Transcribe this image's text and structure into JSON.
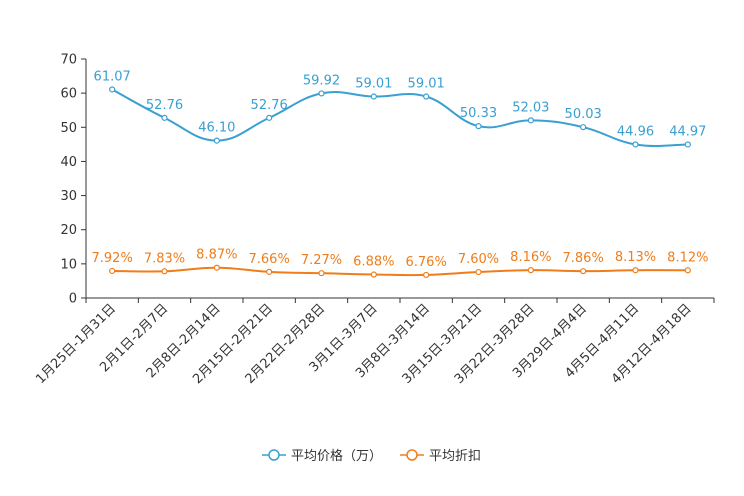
{
  "chart_data": {
    "type": "line",
    "categories": [
      "1月25日-1月31日",
      "2月1日-2月7日",
      "2月8日-2月14日",
      "2月15日-2月21日",
      "2月22日-2月28日",
      "3月1日-3月7日",
      "3月8日-3月14日",
      "3月15日-3月21日",
      "3月22日-3月28日",
      "3月29日-4月4日",
      "4月5日-4月11日",
      "4月12日-4月18日"
    ],
    "ylim": [
      0,
      70
    ],
    "yticks": [
      0,
      10,
      20,
      30,
      40,
      50,
      60,
      70
    ],
    "series": [
      {
        "name": "平均价格（万）",
        "color": "#3a9fd1",
        "values": [
          61.07,
          52.76,
          46.1,
          52.76,
          59.92,
          59.01,
          59.01,
          50.33,
          52.03,
          50.03,
          44.96,
          44.97
        ],
        "labels": [
          "61.07",
          "52.76",
          "46.10",
          "52.76",
          "59.92",
          "59.01",
          "59.01",
          "50.33",
          "52.03",
          "50.03",
          "44.96",
          "44.97"
        ]
      },
      {
        "name": "平均折扣",
        "color": "#f07d1a",
        "values": [
          7.92,
          7.83,
          8.87,
          7.66,
          7.27,
          6.88,
          6.76,
          7.6,
          8.16,
          7.86,
          8.13,
          8.12
        ],
        "labels": [
          "7.92%",
          "7.83%",
          "8.87%",
          "7.66%",
          "7.27%",
          "6.88%",
          "6.76%",
          "7.60%",
          "8.16%",
          "7.86%",
          "8.13%",
          "8.12%"
        ]
      }
    ],
    "legend": "bottom-center",
    "grid": false
  }
}
